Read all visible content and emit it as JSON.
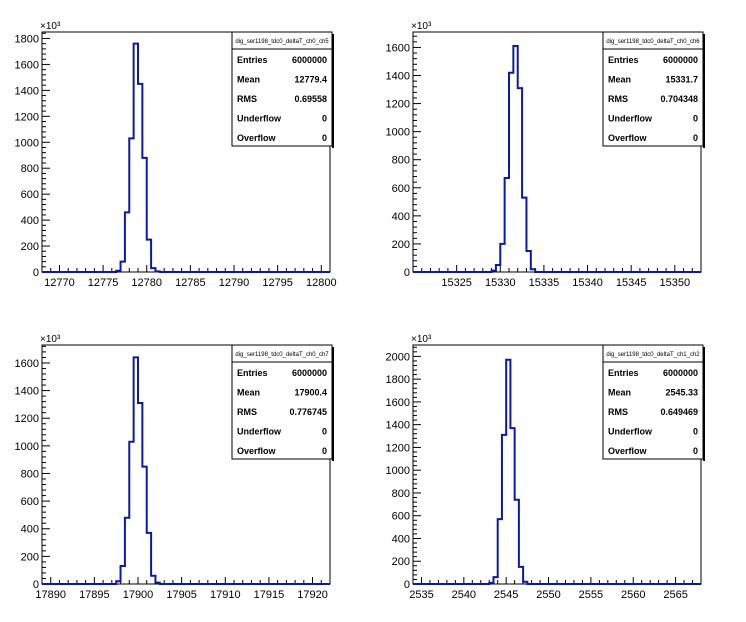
{
  "chart_data": [
    {
      "type": "histogram",
      "stats_title": "dig_ser1198_tdc0_deltaT_ch0_ch5",
      "stats": [
        {
          "label": "Entries",
          "value": "6000000"
        },
        {
          "label": "Mean",
          "value": "12779.4"
        },
        {
          "label": "RMS",
          "value": "0.69558"
        },
        {
          "label": "Underflow",
          "value": "0"
        },
        {
          "label": "Overflow",
          "value": "0"
        }
      ],
      "y_exponent": "×10³",
      "xlim": [
        12768,
        12801
      ],
      "ylim": [
        0,
        1850
      ],
      "xticks": [
        12770,
        12775,
        12780,
        12785,
        12790,
        12795,
        12800
      ],
      "xtick_labels": [
        "12770",
        "12775",
        "12780",
        "12785",
        "12790",
        "12795",
        "12800"
      ],
      "yticks": [
        0,
        200,
        400,
        600,
        800,
        1000,
        1200,
        1400,
        1600,
        1800
      ],
      "ytick_labels": [
        "0",
        "200",
        "400",
        "600",
        "800",
        "1000",
        "1200",
        "1400",
        "1600",
        "1800"
      ],
      "bin_width": 0.5,
      "bins": [
        {
          "x": 12776.5,
          "y": 10
        },
        {
          "x": 12777.0,
          "y": 80
        },
        {
          "x": 12777.5,
          "y": 460
        },
        {
          "x": 12778.0,
          "y": 1030
        },
        {
          "x": 12778.5,
          "y": 1760
        },
        {
          "x": 12779.0,
          "y": 1450
        },
        {
          "x": 12779.5,
          "y": 880
        },
        {
          "x": 12780.0,
          "y": 250
        },
        {
          "x": 12780.5,
          "y": 30
        },
        {
          "x": 12781.0,
          "y": 5
        }
      ]
    },
    {
      "type": "histogram",
      "stats_title": "dig_ser1198_tdc0_deltaT_ch0_ch6",
      "stats": [
        {
          "label": "Entries",
          "value": "6000000"
        },
        {
          "label": "Mean",
          "value": "15331.7"
        },
        {
          "label": "RMS",
          "value": "0.704348"
        },
        {
          "label": "Underflow",
          "value": "0"
        },
        {
          "label": "Overflow",
          "value": "0"
        }
      ],
      "y_exponent": "×10³",
      "xlim": [
        15320,
        15353
      ],
      "ylim": [
        0,
        1710
      ],
      "xticks": [
        15325,
        15330,
        15335,
        15340,
        15345,
        15350
      ],
      "xtick_labels": [
        "15325",
        "15330",
        "15335",
        "15340",
        "15345",
        "15350"
      ],
      "yticks": [
        0,
        200,
        400,
        600,
        800,
        1000,
        1200,
        1400,
        1600
      ],
      "ytick_labels": [
        "0",
        "200",
        "400",
        "600",
        "800",
        "1000",
        "1200",
        "1400",
        "1600"
      ],
      "bin_width": 0.5,
      "bins": [
        {
          "x": 15329.0,
          "y": 10
        },
        {
          "x": 15329.5,
          "y": 50
        },
        {
          "x": 15330.0,
          "y": 200
        },
        {
          "x": 15330.5,
          "y": 670
        },
        {
          "x": 15331.0,
          "y": 1420
        },
        {
          "x": 15331.5,
          "y": 1610
        },
        {
          "x": 15332.0,
          "y": 1310
        },
        {
          "x": 15332.5,
          "y": 530
        },
        {
          "x": 15333.0,
          "y": 150
        },
        {
          "x": 15333.5,
          "y": 20
        }
      ]
    },
    {
      "type": "histogram",
      "stats_title": "dig_ser1198_tdc0_deltaT_ch0_ch7",
      "stats": [
        {
          "label": "Entries",
          "value": "6000000"
        },
        {
          "label": "Mean",
          "value": "17900.4"
        },
        {
          "label": "RMS",
          "value": "0.776745"
        },
        {
          "label": "Underflow",
          "value": "0"
        },
        {
          "label": "Overflow",
          "value": "0"
        }
      ],
      "y_exponent": "×10³",
      "xlim": [
        17889,
        17922
      ],
      "ylim": [
        0,
        1730
      ],
      "xticks": [
        17890,
        17895,
        17900,
        17905,
        17910,
        17915,
        17920
      ],
      "xtick_labels": [
        "17890",
        "17895",
        "17900",
        "17905",
        "17910",
        "17915",
        "17920"
      ],
      "yticks": [
        0,
        200,
        400,
        600,
        800,
        1000,
        1200,
        1400,
        1600
      ],
      "ytick_labels": [
        "0",
        "200",
        "400",
        "600",
        "800",
        "1000",
        "1200",
        "1400",
        "1600"
      ],
      "bin_width": 0.5,
      "bins": [
        {
          "x": 17897.5,
          "y": 20
        },
        {
          "x": 17898.0,
          "y": 130
        },
        {
          "x": 17898.5,
          "y": 480
        },
        {
          "x": 17899.0,
          "y": 1030
        },
        {
          "x": 17899.5,
          "y": 1640
        },
        {
          "x": 17900.0,
          "y": 1310
        },
        {
          "x": 17900.5,
          "y": 850
        },
        {
          "x": 17901.0,
          "y": 370
        },
        {
          "x": 17901.5,
          "y": 60
        },
        {
          "x": 17902.0,
          "y": 10
        }
      ]
    },
    {
      "type": "histogram",
      "stats_title": "dig_ser1198_tdc0_deltaT_ch1_ch2",
      "stats": [
        {
          "label": "Entries",
          "value": "6000000"
        },
        {
          "label": "Mean",
          "value": "2545.33"
        },
        {
          "label": "RMS",
          "value": "0.649469"
        },
        {
          "label": "Underflow",
          "value": "0"
        },
        {
          "label": "Overflow",
          "value": "0"
        }
      ],
      "y_exponent": "×10³",
      "xlim": [
        2534,
        2568
      ],
      "ylim": [
        0,
        2100
      ],
      "xticks": [
        2535,
        2540,
        2545,
        2550,
        2555,
        2560,
        2565
      ],
      "xtick_labels": [
        "2535",
        "2540",
        "2545",
        "2550",
        "2555",
        "2560",
        "2565"
      ],
      "yticks": [
        0,
        200,
        400,
        600,
        800,
        1000,
        1200,
        1400,
        1600,
        1800,
        2000
      ],
      "ytick_labels": [
        "0",
        "200",
        "400",
        "600",
        "800",
        "1000",
        "1200",
        "1400",
        "1600",
        "1800",
        "2000"
      ],
      "bin_width": 0.5,
      "bins": [
        {
          "x": 2543.0,
          "y": 10
        },
        {
          "x": 2543.5,
          "y": 60
        },
        {
          "x": 2544.0,
          "y": 570
        },
        {
          "x": 2544.5,
          "y": 1310
        },
        {
          "x": 2545.0,
          "y": 1970
        },
        {
          "x": 2545.5,
          "y": 1370
        },
        {
          "x": 2546.0,
          "y": 740
        },
        {
          "x": 2546.5,
          "y": 150
        },
        {
          "x": 2547.0,
          "y": 20
        }
      ]
    }
  ]
}
